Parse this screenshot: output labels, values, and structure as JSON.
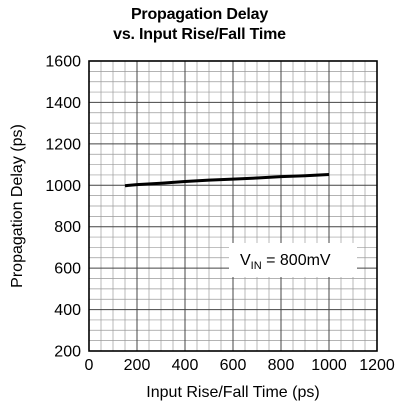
{
  "chart_data": {
    "type": "line",
    "title_line_1": "Propagation Delay",
    "title_line_2": "vs. Input Rise/Fall Time",
    "xlabel": "Input Rise/Fall Time (ps)",
    "ylabel": "Propagation Delay (ps)",
    "xlim": [
      0,
      1200
    ],
    "ylim": [
      200,
      1600
    ],
    "x_ticks": [
      0,
      200,
      400,
      600,
      800,
      1000,
      1200
    ],
    "x_tick_labels": [
      "0",
      "200",
      "400",
      "600",
      "800",
      "1000",
      "1200"
    ],
    "y_ticks": [
      200,
      400,
      600,
      800,
      1000,
      1200,
      1400,
      1600
    ],
    "y_tick_labels": [
      "200",
      "400",
      "600",
      "800",
      "1000",
      "1200",
      "1400",
      "1600"
    ],
    "minor_x_step": 50,
    "minor_y_step": 50,
    "grid": true,
    "annotation": {
      "prefix": "V",
      "subscript": "IN",
      "suffix": " = 800mV",
      "position": "right-middle"
    },
    "series": [
      {
        "x": [
          150,
          200,
          300,
          400,
          500,
          600,
          700,
          800,
          900,
          1000
        ],
        "y": [
          998,
          1003,
          1010,
          1018,
          1025,
          1030,
          1035,
          1042,
          1046,
          1052
        ],
        "color": "#000000"
      }
    ]
  }
}
